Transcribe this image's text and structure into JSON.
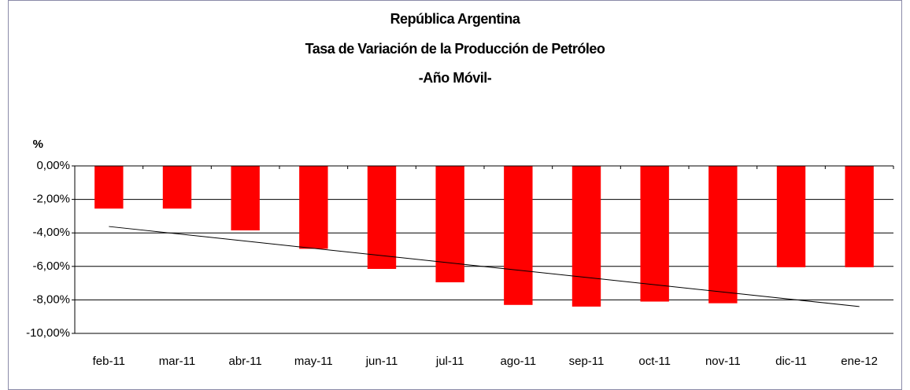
{
  "chart_data": {
    "type": "bar",
    "title": [
      "República Argentina",
      "Tasa de Variación de la Producción de Petróleo",
      "-Año Móvil-"
    ],
    "y_label": "%",
    "categories": [
      "feb-11",
      "mar-11",
      "abr-11",
      "may-11",
      "jun-11",
      "jul-11",
      "ago-11",
      "sep-11",
      "oct-11",
      "nov-11",
      "dic-11",
      "ene-12"
    ],
    "values": [
      -2.55,
      -2.55,
      -3.85,
      -4.95,
      -6.15,
      -6.95,
      -8.3,
      -8.4,
      -8.1,
      -8.2,
      -6.05,
      -6.05
    ],
    "color": "#ff0000",
    "ylim": [
      -10,
      0
    ],
    "yticks": [
      {
        "value": 0,
        "label": "0,00%"
      },
      {
        "value": -2,
        "label": "-2,00%"
      },
      {
        "value": -4,
        "label": "-4,00%"
      },
      {
        "value": -6,
        "label": "-6,00%"
      },
      {
        "value": -8,
        "label": "-8,00%"
      },
      {
        "value": -10,
        "label": "-10,00%"
      }
    ],
    "grid": true,
    "trendline": true
  }
}
